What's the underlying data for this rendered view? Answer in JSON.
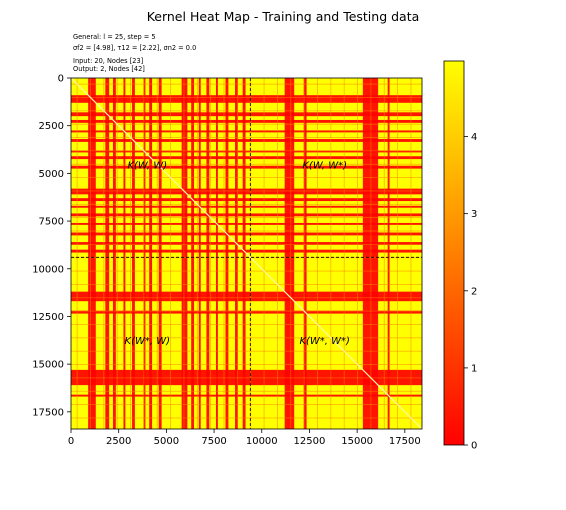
{
  "chart_data": {
    "type": "heatmap",
    "title": "Kernel Heat Map - Training and Testing data",
    "annotations": [
      "General: $l$ = 25, step = 5",
      "σ²_f = [4.98], τ²_l = [2.22], σ²_n = 0.0",
      "Input: 20, Nodes [23]",
      "Output: 2, Nodes [42]"
    ],
    "info_lines": [
      {
        "text": "General: l = 25, step = 5"
      },
      {
        "text": "σf2 = [4.98], τ12 = [2.22], σn2 = 0.0"
      },
      {
        "text": "Input: 20, Nodes [23]"
      },
      {
        "text": "Output: 2, Nodes [42]"
      }
    ],
    "x_ticks": [
      "0",
      "2500",
      "5000",
      "7500",
      "10000",
      "12500",
      "15000",
      "17500"
    ],
    "x_tick_values": [
      0,
      2500,
      5000,
      7500,
      10000,
      12500,
      15000,
      17500
    ],
    "y_ticks": [
      "0",
      "2500",
      "5000",
      "7500",
      "10000",
      "12500",
      "15000",
      "17500"
    ],
    "y_tick_values": [
      0,
      2500,
      5000,
      7500,
      10000,
      12500,
      15000,
      17500
    ],
    "xlim": [
      0,
      18400
    ],
    "ylim_inverted": [
      18400,
      0
    ],
    "split_value": 9400,
    "quadrant_labels": [
      {
        "text": "K(W, W)",
        "x": 4000,
        "y": 4750
      },
      {
        "text": "K(W, W*)",
        "x": 13300,
        "y": 4750
      },
      {
        "text": "K(W*, W)",
        "x": 4000,
        "y": 13950
      },
      {
        "text": "K(W*, W*)",
        "x": 13300,
        "y": 13950
      }
    ],
    "colorbar": {
      "ticks": [
        "0",
        "1",
        "2",
        "3",
        "4"
      ],
      "tick_values": [
        0,
        1,
        2,
        3,
        4
      ],
      "range": [
        0,
        4.98
      ]
    },
    "red_bands": [
      [
        900,
        1300
      ],
      [
        1800,
        2000
      ],
      [
        2200,
        2350
      ],
      [
        2750,
        2850
      ],
      [
        3200,
        3350
      ],
      [
        3800,
        3900
      ],
      [
        4100,
        4250
      ],
      [
        4600,
        4750
      ],
      [
        5800,
        6100
      ],
      [
        6300,
        6450
      ],
      [
        6700,
        6800
      ],
      [
        7100,
        7250
      ],
      [
        7600,
        7700
      ],
      [
        8100,
        8250
      ],
      [
        8600,
        8750
      ],
      [
        9000,
        9150
      ],
      [
        11200,
        11700
      ],
      [
        12200,
        12350
      ],
      [
        15300,
        16100
      ],
      [
        16600,
        16700
      ]
    ],
    "colors": {
      "high": "#ffff00",
      "mid": "#ff8000",
      "low": "#ff0000",
      "divider": "#000000"
    }
  }
}
